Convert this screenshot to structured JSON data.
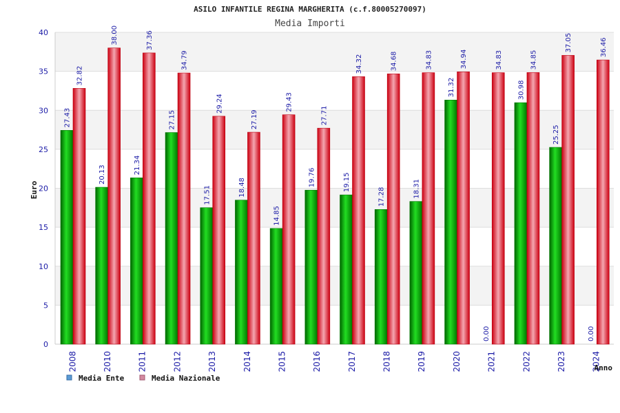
{
  "chart_data": {
    "type": "bar",
    "title": "ASILO INFANTILE REGINA MARGHERITA (c.f.80005270097)",
    "subtitle": "Media Importi",
    "ylabel": "Euro",
    "xlabel": "Anno",
    "ylim": [
      0,
      40
    ],
    "yticks": [
      0,
      5,
      10,
      15,
      20,
      25,
      30,
      35,
      40
    ],
    "grid": true,
    "legend_position": "bottom-left",
    "categories": [
      "2008",
      "2010",
      "2011",
      "2012",
      "2013",
      "2014",
      "2015",
      "2016",
      "2017",
      "2018",
      "2019",
      "2020",
      "2021",
      "2022",
      "2023",
      "2024"
    ],
    "series": [
      {
        "name": "Media Ente",
        "color": "#00aa00",
        "legend_color": "#5b9bd5",
        "values": [
          27.43,
          20.13,
          21.34,
          27.15,
          17.51,
          18.48,
          14.85,
          19.76,
          19.15,
          17.28,
          18.31,
          31.32,
          0.0,
          30.98,
          25.25,
          0.0
        ],
        "labels": [
          "27.43",
          "20.13",
          "21.34",
          "27.15",
          "17.51",
          "18.48",
          "14.85",
          "19.76",
          "19.15",
          "17.28",
          "18.31",
          "31.32",
          "0.00",
          "30.98",
          "25.25",
          "0.00"
        ]
      },
      {
        "name": "Media Nazionale",
        "color": "#dd1122",
        "legend_color": "#d48aa0",
        "values": [
          32.82,
          38.0,
          37.36,
          34.79,
          29.24,
          27.19,
          29.43,
          27.71,
          34.32,
          34.68,
          34.83,
          34.94,
          34.83,
          34.85,
          37.05,
          36.46
        ],
        "labels": [
          "32.82",
          "38.00",
          "37.36",
          "34.79",
          "29.24",
          "27.19",
          "29.43",
          "27.71",
          "34.32",
          "34.68",
          "34.83",
          "34.94",
          "34.83",
          "34.85",
          "37.05",
          "36.46"
        ]
      }
    ]
  }
}
